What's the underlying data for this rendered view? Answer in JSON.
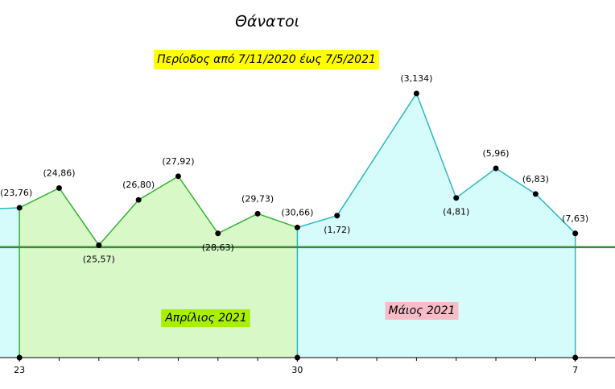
{
  "chart_data": {
    "type": "line",
    "title": "Θάνατοι",
    "subtitle": "Περίοδος από 7/11/2020 έως 7/5/2021",
    "xlim": [
      -0.49,
      15.0
    ],
    "ylim": [
      0,
      181.4
    ],
    "xticks": [
      {
        "value": 0,
        "label": "23"
      },
      {
        "value": 7,
        "label": "30"
      },
      {
        "value": 14,
        "label": "7"
      }
    ],
    "reference_line": 56,
    "reference_color": "#3a8a3a",
    "series": [
      {
        "name": "Απρίλιος  2021",
        "color": "#2fb52f",
        "fill": "#d9f8c8",
        "label_bg": "#a8f000",
        "x": [
          0,
          1,
          2,
          3,
          4,
          5,
          6,
          7
        ],
        "values": [
          76,
          86,
          57,
          80,
          92,
          63,
          73,
          66
        ],
        "value_labels": [
          "(23,76)",
          "(24,86)",
          "(25,57)",
          "(26,80)",
          "(27,92)",
          "(28,63)",
          "(29,73)",
          "(30,66)"
        ]
      },
      {
        "name": "Μάιος 2021",
        "color": "#2ab8c0",
        "fill": "#d6fbfb",
        "label_bg": "#f7bcc6",
        "x": [
          8,
          10,
          11,
          12,
          13,
          14
        ],
        "values": [
          72,
          134,
          81,
          96,
          83,
          63
        ],
        "value_labels": [
          "(1,72)",
          "(3,134)",
          "(4,81)",
          "(5,96)",
          "(6,83)",
          "(7,63)"
        ]
      }
    ]
  }
}
